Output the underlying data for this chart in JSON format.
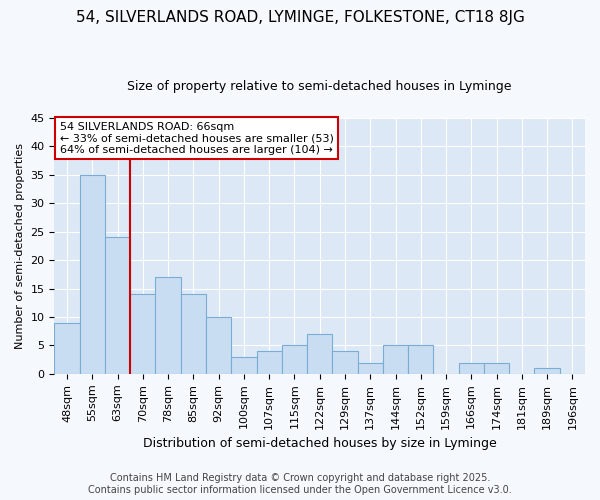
{
  "title1": "54, SILVERLANDS ROAD, LYMINGE, FOLKESTONE, CT18 8JG",
  "title2": "Size of property relative to semi-detached houses in Lyminge",
  "xlabel": "Distribution of semi-detached houses by size in Lyminge",
  "ylabel": "Number of semi-detached properties",
  "categories": [
    "48sqm",
    "55sqm",
    "63sqm",
    "70sqm",
    "78sqm",
    "85sqm",
    "92sqm",
    "100sqm",
    "107sqm",
    "115sqm",
    "122sqm",
    "129sqm",
    "137sqm",
    "144sqm",
    "152sqm",
    "159sqm",
    "166sqm",
    "174sqm",
    "181sqm",
    "189sqm",
    "196sqm"
  ],
  "values": [
    9,
    35,
    24,
    14,
    17,
    14,
    10,
    3,
    4,
    5,
    7,
    4,
    2,
    5,
    5,
    0,
    2,
    2,
    0,
    1,
    0
  ],
  "bar_color": "#c9ddf2",
  "bar_edge_color": "#7aadd4",
  "vline_x_index": 2.5,
  "vline_color": "#cc0000",
  "annotation_title": "54 SILVERLANDS ROAD: 66sqm",
  "annotation_line1": "← 33% of semi-detached houses are smaller (53)",
  "annotation_line2": "64% of semi-detached houses are larger (104) →",
  "annotation_box_color": "#ffffff",
  "annotation_box_edge_color": "#cc0000",
  "ylim": [
    0,
    45
  ],
  "yticks": [
    0,
    5,
    10,
    15,
    20,
    25,
    30,
    35,
    40,
    45
  ],
  "footer": "Contains HM Land Registry data © Crown copyright and database right 2025.\nContains public sector information licensed under the Open Government Licence v3.0.",
  "fig_bg_color": "#f5f8fd",
  "plot_bg_color": "#dce8f5",
  "grid_color": "#ffffff",
  "title1_fontsize": 11,
  "title2_fontsize": 9,
  "xlabel_fontsize": 9,
  "ylabel_fontsize": 8,
  "tick_fontsize": 8,
  "annotation_fontsize": 8,
  "footer_fontsize": 7
}
